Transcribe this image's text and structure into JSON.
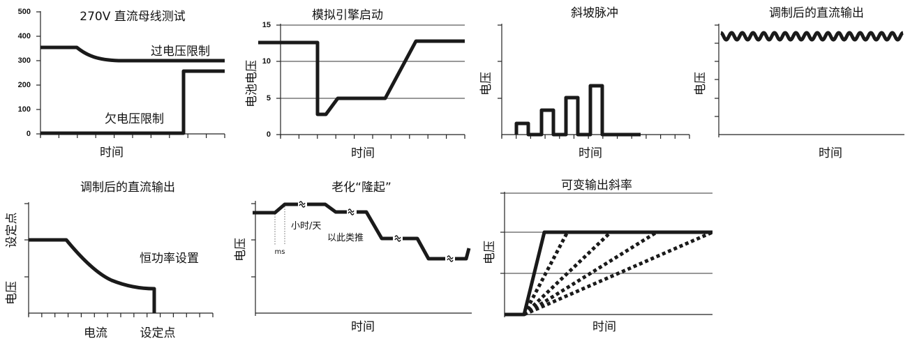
{
  "chart_data": [
    {
      "id": "c1",
      "type": "line",
      "title": "270V 直流母线测试",
      "xlabel": "时间",
      "ylabel": "",
      "ylim": [
        0,
        500
      ],
      "yticks": [
        "500",
        "400",
        "300",
        "200",
        "100",
        "0"
      ],
      "annotations": [
        "过电压限制",
        "欠电压限制"
      ],
      "series": [
        {
          "x": [
            0,
            1,
            1.8,
            3,
            10
          ],
          "y": [
            350,
            350,
            320,
            300,
            300
          ]
        },
        {
          "x": [
            0,
            7.8,
            7.8,
            10
          ],
          "y": [
            0,
            0,
            255,
            255
          ]
        }
      ]
    },
    {
      "id": "c2",
      "type": "line",
      "title": "模拟引擎启动",
      "xlabel": "时间",
      "ylabel": "电池电压",
      "ylim": [
        0,
        15
      ],
      "yticks": [
        "15",
        "10",
        "5",
        "0"
      ],
      "series": [
        {
          "x": [
            0,
            2,
            2,
            2.5,
            3.1,
            6.2,
            7.8,
            10
          ],
          "y": [
            12.5,
            12.5,
            2.7,
            2.7,
            5,
            5,
            12.8,
            12.8
          ]
        }
      ]
    },
    {
      "id": "c3",
      "type": "line",
      "title": "斜坡脉冲",
      "xlabel": "时间",
      "ylabel": "电压",
      "series": [
        {
          "x": [
            0.3,
            0.3,
            0.9,
            0.9,
            1.5,
            1.5,
            2.1,
            2.1,
            2.7,
            2.7,
            3.3,
            3.3,
            3.9,
            3.9,
            4.5,
            4.5,
            5.1,
            5.1,
            6.5
          ],
          "y": [
            0,
            1.5,
            1.5,
            0,
            0,
            3.2,
            3.2,
            0,
            0,
            5,
            5,
            0,
            0,
            6.8,
            6.8,
            0,
            0,
            0,
            0
          ]
        }
      ]
    },
    {
      "id": "c4",
      "type": "line",
      "title": "调制后的直流输出",
      "xlabel": "时间",
      "ylabel": "电压",
      "series": [
        {
          "description": "sine",
          "mean": 9.3,
          "amplitude": 0.45,
          "cycles": 17
        }
      ]
    },
    {
      "id": "c5",
      "type": "line",
      "title": "调制后的直流输出",
      "xlabel": "电流",
      "xlabel2": "设定点",
      "ylabel": "电压",
      "ylabel2": "设定点",
      "annotations": [
        "恒功率设置"
      ],
      "series": [
        {
          "x": [
            0,
            2,
            3,
            4,
            5,
            6,
            6.7,
            6.7
          ],
          "y": [
            6,
            6,
            4.3,
            3.3,
            2.7,
            2.3,
            2.2,
            0
          ]
        }
      ]
    },
    {
      "id": "c6",
      "type": "line",
      "title": "老化“隆起”",
      "xlabel": "时间",
      "ylabel": "电压",
      "annotations": [
        "ms",
        "小时/天",
        "以此类推"
      ],
      "series": [
        {
          "x": [
            0,
            1,
            1.5,
            2.6,
            3.6,
            4,
            5.4,
            5.9,
            7.6,
            8.2,
            9.7,
            10
          ],
          "y": [
            8.5,
            8.5,
            9.2,
            9.2,
            9.2,
            8.5,
            8.5,
            6.6,
            6.6,
            4.8,
            4.8,
            5.4
          ]
        }
      ]
    },
    {
      "id": "c7",
      "type": "line",
      "title": "可变输出斜率",
      "xlabel": "时间",
      "ylabel": "电压",
      "series": [
        {
          "x": [
            0,
            1,
            2,
            10
          ],
          "y": [
            0,
            0,
            7.5,
            7.5
          ]
        },
        {
          "x": [
            1,
            3.1
          ],
          "y": [
            0,
            7.5
          ],
          "style": "dashed"
        },
        {
          "x": [
            1,
            5.1
          ],
          "y": [
            0,
            7.5
          ],
          "style": "dashed"
        },
        {
          "x": [
            1,
            7.2
          ],
          "y": [
            0,
            7.5
          ],
          "style": "dashed"
        },
        {
          "x": [
            1,
            10
          ],
          "y": [
            0,
            7.5
          ],
          "style": "dashed"
        }
      ]
    }
  ]
}
